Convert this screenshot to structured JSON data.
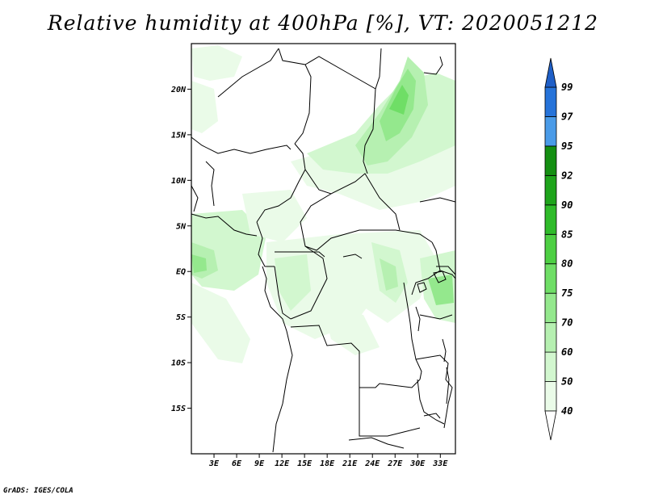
{
  "title": "Relative humidity at 400hPa [%], VT: 2020051212",
  "credit": "GrADS: IGES/COLA",
  "map": {
    "lon_range": [
      0,
      35
    ],
    "lat_range": [
      -20,
      25
    ],
    "lat_ticks": [
      {
        "value": 20,
        "label": "20N"
      },
      {
        "value": 15,
        "label": "15N"
      },
      {
        "value": 10,
        "label": "10N"
      },
      {
        "value": 5,
        "label": "5N"
      },
      {
        "value": 0,
        "label": "EQ"
      },
      {
        "value": -5,
        "label": "5S"
      },
      {
        "value": -10,
        "label": "10S"
      },
      {
        "value": -15,
        "label": "15S"
      }
    ],
    "lon_ticks": [
      {
        "value": 3,
        "label": "3E"
      },
      {
        "value": 6,
        "label": "6E"
      },
      {
        "value": 9,
        "label": "9E"
      },
      {
        "value": 12,
        "label": "12E"
      },
      {
        "value": 15,
        "label": "15E"
      },
      {
        "value": 18,
        "label": "18E"
      },
      {
        "value": 21,
        "label": "21E"
      },
      {
        "value": 24,
        "label": "24E"
      },
      {
        "value": 27,
        "label": "27E"
      },
      {
        "value": 30,
        "label": "30E"
      },
      {
        "value": 33,
        "label": "33E"
      }
    ]
  },
  "colorbar": {
    "levels": [
      {
        "label": "40",
        "color": "#ffffff"
      },
      {
        "label": "50",
        "color": "#eafbe8"
      },
      {
        "label": "60",
        "color": "#d2f7cf"
      },
      {
        "label": "70",
        "color": "#b6f0b1"
      },
      {
        "label": "75",
        "color": "#94e88d"
      },
      {
        "label": "80",
        "color": "#6fde66"
      },
      {
        "label": "85",
        "color": "#4dcf43"
      },
      {
        "label": "90",
        "color": "#2fbb2a"
      },
      {
        "label": "92",
        "color": "#1ea41b"
      },
      {
        "label": "95",
        "color": "#148f12"
      },
      {
        "label": "97",
        "color": "#4a9be8"
      },
      {
        "label": "99",
        "color": "#2673d9"
      }
    ],
    "top_color": "#1f5fc7",
    "bottom_color": "#ffffff"
  }
}
